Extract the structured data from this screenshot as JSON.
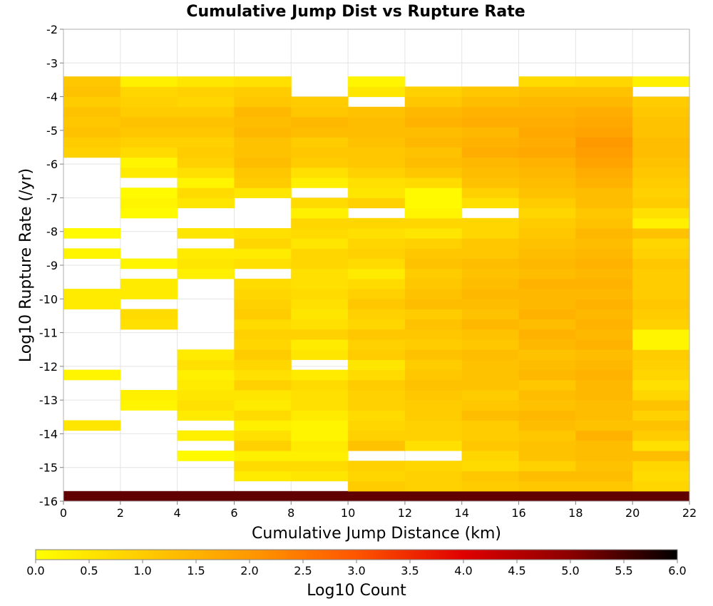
{
  "chart_data": {
    "type": "heatmap",
    "title": "Cumulative Jump Dist vs Rupture Rate",
    "xlabel": "Cumulative Jump Distance (km)",
    "ylabel": "Log10 Rupture Rate (/yr)",
    "xlim": [
      0,
      22
    ],
    "ylim": [
      -16,
      -2
    ],
    "x_ticks": [
      "0",
      "2",
      "4",
      "6",
      "8",
      "10",
      "12",
      "14",
      "16",
      "18",
      "20",
      "22"
    ],
    "y_ticks": [
      "-2",
      "-3",
      "-4",
      "-5",
      "-6",
      "-7",
      "-8",
      "-9",
      "-10",
      "-11",
      "-12",
      "-13",
      "-14",
      "-15",
      "-16"
    ],
    "grid": true,
    "x_bin_width": 2,
    "y_bin_height": 0.3,
    "y_start": -16,
    "n_y_bins": 42,
    "colorbar": {
      "label": "Log10 Count",
      "range": [
        0,
        6
      ],
      "ticks": [
        "0.0",
        "0.5",
        "1.0",
        "1.5",
        "2.0",
        "2.5",
        "3.0",
        "3.5",
        "4.0",
        "4.5",
        "5.0",
        "5.5",
        "6.0"
      ],
      "colors": [
        "#ffff00",
        "#ffcc00",
        "#ff9900",
        "#ff5500",
        "#e00000",
        "#8b0000",
        "#000000"
      ]
    },
    "series": [
      {
        "x": 1,
        "values": [
          5.3,
          null,
          null,
          null,
          null,
          null,
          null,
          0.5,
          null,
          null,
          null,
          null,
          0.2,
          null,
          null,
          null,
          null,
          null,
          null,
          0.4,
          0.4,
          null,
          null,
          null,
          0.2,
          null,
          0.1,
          null,
          null,
          null,
          null,
          null,
          null,
          null,
          0.9,
          1.0,
          1.2,
          1.1,
          1.2,
          1.0,
          1.2,
          1.1
        ]
      },
      {
        "x": 3,
        "values": [
          5.3,
          null,
          null,
          null,
          null,
          null,
          null,
          null,
          null,
          0.2,
          0.3,
          null,
          null,
          null,
          null,
          null,
          null,
          0.6,
          0.7,
          null,
          0.4,
          0.4,
          null,
          0.2,
          null,
          null,
          null,
          null,
          0.1,
          0.2,
          0.1,
          null,
          0.4,
          0.2,
          0.7,
          0.9,
          1.1,
          1.2,
          1.0,
          0.9,
          0.8,
          0.3
        ]
      },
      {
        "x": 5,
        "values": [
          5.3,
          null,
          null,
          null,
          0.1,
          null,
          0.3,
          null,
          0.4,
          0.6,
          0.5,
          0.4,
          0.3,
          0.6,
          0.4,
          null,
          null,
          null,
          null,
          null,
          null,
          null,
          0.3,
          0.5,
          0.4,
          null,
          0.5,
          null,
          null,
          0.5,
          0.7,
          0.2,
          0.6,
          0.9,
          1.0,
          0.9,
          1.1,
          1.2,
          1.0,
          0.8,
          0.9,
          0.5
        ]
      },
      {
        "x": 7,
        "values": [
          5.3,
          null,
          0.4,
          0.7,
          0.3,
          0.9,
          0.6,
          0.3,
          0.7,
          0.4,
          0.5,
          0.9,
          0.6,
          0.8,
          1.0,
          0.8,
          0.9,
          0.7,
          1.0,
          0.9,
          0.8,
          0.7,
          null,
          0.6,
          0.4,
          0.8,
          0.6,
          null,
          null,
          null,
          0.5,
          1.0,
          1.1,
          1.3,
          1.2,
          1.2,
          1.4,
          1.3,
          1.4,
          1.1,
          1.0,
          0.6
        ]
      },
      {
        "x": 9,
        "values": [
          5.3,
          null,
          0.5,
          0.7,
          0.3,
          0.4,
          0.2,
          0.2,
          0.4,
          0.6,
          0.6,
          0.7,
          0.4,
          null,
          0.5,
          0.4,
          0.9,
          0.6,
          0.5,
          0.6,
          0.7,
          0.6,
          0.6,
          0.8,
          0.8,
          0.5,
          0.7,
          0.8,
          0.3,
          0.7,
          null,
          0.3,
          0.6,
          1.0,
          1.1,
          1.0,
          1.3,
          1.4,
          1.1,
          1.0,
          null,
          null
        ]
      },
      {
        "x": 11,
        "values": [
          5.3,
          1.0,
          0.8,
          0.9,
          null,
          1.2,
          0.9,
          0.8,
          0.7,
          0.9,
          0.9,
          1.0,
          0.7,
          0.5,
          1.0,
          0.9,
          1.1,
          0.8,
          0.9,
          1.1,
          0.9,
          0.7,
          0.4,
          0.7,
          0.9,
          0.8,
          0.6,
          0.8,
          null,
          0.9,
          0.5,
          0.6,
          0.9,
          1.1,
          1.1,
          1.2,
          1.3,
          1.3,
          1.2,
          null,
          0.5,
          0.2
        ]
      },
      {
        "x": 13,
        "values": [
          5.3,
          0.9,
          0.9,
          0.8,
          null,
          0.6,
          0.9,
          0.9,
          1.0,
          1.0,
          1.1,
          1.2,
          1.1,
          1.0,
          1.2,
          1.0,
          1.1,
          1.2,
          1.0,
          1.3,
          1.2,
          1.1,
          1.0,
          1.2,
          1.1,
          0.9,
          0.5,
          0.8,
          0.2,
          0.1,
          0.1,
          0.7,
          1.1,
          1.3,
          1.2,
          1.4,
          1.3,
          1.5,
          1.4,
          1.1,
          0.9,
          null
        ]
      },
      {
        "x": 15,
        "values": [
          5.3,
          1.0,
          1.1,
          0.7,
          0.8,
          1.1,
          1.0,
          1.0,
          1.3,
          1.1,
          1.0,
          1.2,
          1.2,
          1.2,
          1.3,
          1.1,
          1.2,
          1.4,
          1.2,
          1.3,
          1.4,
          1.3,
          1.2,
          1.3,
          1.1,
          1.1,
          0.8,
          0.8,
          null,
          0.6,
          0.9,
          1.2,
          1.3,
          1.4,
          1.6,
          1.5,
          1.4,
          1.6,
          1.5,
          1.3,
          1.1,
          null
        ]
      },
      {
        "x": 17,
        "values": [
          5.3,
          1.1,
          1.3,
          0.9,
          1.2,
          1.2,
          1.1,
          1.3,
          1.4,
          1.2,
          1.3,
          1.1,
          1.4,
          1.3,
          1.2,
          1.4,
          1.5,
          1.3,
          1.5,
          1.4,
          1.4,
          1.5,
          1.3,
          1.4,
          1.3,
          1.2,
          1.1,
          1.0,
          0.8,
          1.0,
          1.2,
          1.3,
          1.4,
          1.5,
          1.7,
          1.6,
          1.7,
          1.6,
          1.5,
          1.4,
          1.2,
          0.7
        ]
      },
      {
        "x": 19,
        "values": [
          5.3,
          1.1,
          1.3,
          1.2,
          1.3,
          1.3,
          1.5,
          1.2,
          1.3,
          1.3,
          1.4,
          1.4,
          1.5,
          1.4,
          1.3,
          1.5,
          1.4,
          1.5,
          1.4,
          1.5,
          1.4,
          1.5,
          1.4,
          1.5,
          1.4,
          1.3,
          1.4,
          1.2,
          1.1,
          1.3,
          1.3,
          1.5,
          1.6,
          1.8,
          1.9,
          2.0,
          1.8,
          1.7,
          1.6,
          1.4,
          1.2,
          0.8
        ]
      },
      {
        "x": 21,
        "values": [
          5.3,
          0.8,
          0.7,
          0.8,
          1.3,
          0.6,
          1.0,
          1.2,
          0.9,
          1.2,
          0.8,
          0.6,
          0.8,
          0.9,
          1.0,
          0.2,
          0.2,
          0.9,
          1.0,
          1.1,
          1.0,
          1.0,
          1.0,
          1.1,
          0.9,
          0.8,
          1.2,
          0.3,
          0.6,
          1.0,
          0.9,
          1.0,
          1.1,
          1.2,
          1.3,
          1.3,
          1.2,
          1.2,
          1.1,
          1.0,
          null,
          0.3
        ]
      }
    ]
  }
}
